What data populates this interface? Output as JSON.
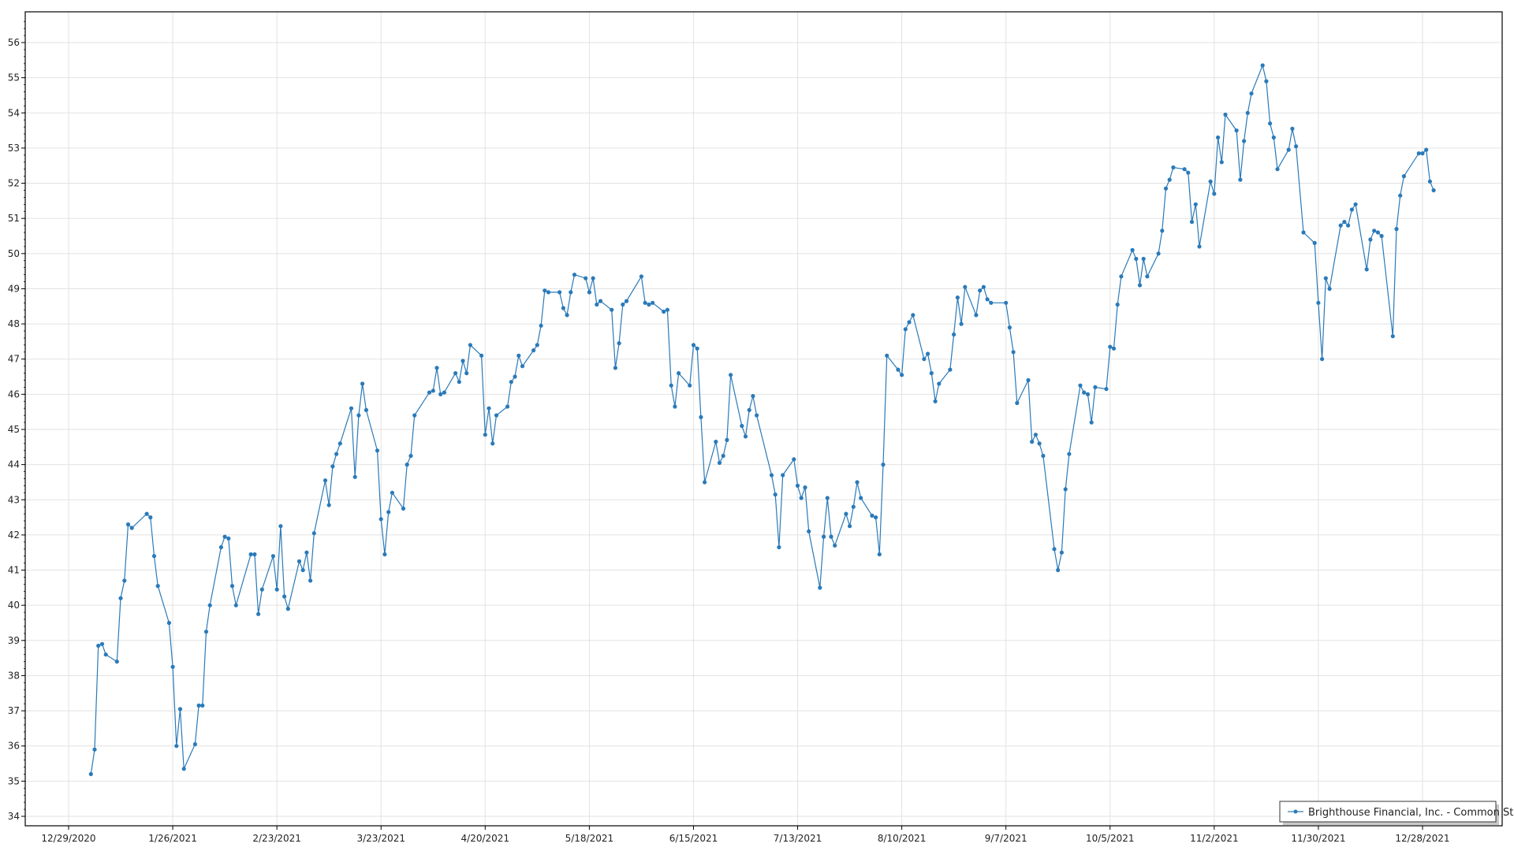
{
  "chart_data": {
    "type": "line",
    "title": "",
    "xlabel": "",
    "ylabel": "",
    "ylim": [
      34,
      56.8
    ],
    "xlim": [
      "2020-12-17",
      "2022-01-18"
    ],
    "grid": true,
    "legend_placement": "bottom-right",
    "y_ticks": [
      "34",
      "35",
      "36",
      "37",
      "38",
      "39",
      "40",
      "41",
      "42",
      "43",
      "44",
      "45",
      "46",
      "47",
      "48",
      "49",
      "50",
      "51",
      "52",
      "53",
      "54",
      "55",
      "56"
    ],
    "x_ticks": [
      {
        "date": "2020-12-29",
        "label": "12/29/2020"
      },
      {
        "date": "2021-01-26",
        "label": "1/26/2021"
      },
      {
        "date": "2021-02-23",
        "label": "2/23/2021"
      },
      {
        "date": "2021-03-23",
        "label": "3/23/2021"
      },
      {
        "date": "2021-04-20",
        "label": "4/20/2021"
      },
      {
        "date": "2021-05-18",
        "label": "5/18/2021"
      },
      {
        "date": "2021-06-15",
        "label": "6/15/2021"
      },
      {
        "date": "2021-07-13",
        "label": "7/13/2021"
      },
      {
        "date": "2021-08-10",
        "label": "8/10/2021"
      },
      {
        "date": "2021-09-07",
        "label": "9/7/2021"
      },
      {
        "date": "2021-10-05",
        "label": "10/5/2021"
      },
      {
        "date": "2021-11-02",
        "label": "11/2/2021"
      },
      {
        "date": "2021-11-30",
        "label": "11/30/2021"
      },
      {
        "date": "2021-12-28",
        "label": "12/28/2021"
      }
    ],
    "series": [
      {
        "name": "Brighthouse Financial, Inc. - Common Stock",
        "color": "#2a7ab9",
        "points": [
          [
            "2021-01-04",
            35.2
          ],
          [
            "2021-01-05",
            35.9
          ],
          [
            "2021-01-06",
            38.85
          ],
          [
            "2021-01-07",
            38.9
          ],
          [
            "2021-01-08",
            38.6
          ],
          [
            "2021-01-11",
            38.4
          ],
          [
            "2021-01-12",
            40.2
          ],
          [
            "2021-01-13",
            40.7
          ],
          [
            "2021-01-14",
            42.3
          ],
          [
            "2021-01-15",
            42.2
          ],
          [
            "2021-01-19",
            42.6
          ],
          [
            "2021-01-20",
            42.5
          ],
          [
            "2021-01-21",
            41.4
          ],
          [
            "2021-01-22",
            40.55
          ],
          [
            "2021-01-25",
            39.5
          ],
          [
            "2021-01-26",
            38.25
          ],
          [
            "2021-01-27",
            36.0
          ],
          [
            "2021-01-28",
            37.05
          ],
          [
            "2021-01-29",
            35.35
          ],
          [
            "2021-02-01",
            36.05
          ],
          [
            "2021-02-02",
            37.15
          ],
          [
            "2021-02-03",
            37.15
          ],
          [
            "2021-02-04",
            39.25
          ],
          [
            "2021-02-05",
            40.0
          ],
          [
            "2021-02-08",
            41.65
          ],
          [
            "2021-02-09",
            41.95
          ],
          [
            "2021-02-10",
            41.9
          ],
          [
            "2021-02-11",
            40.55
          ],
          [
            "2021-02-12",
            40.0
          ],
          [
            "2021-02-16",
            41.45
          ],
          [
            "2021-02-17",
            41.45
          ],
          [
            "2021-02-18",
            39.75
          ],
          [
            "2021-02-19",
            40.45
          ],
          [
            "2021-02-22",
            41.4
          ],
          [
            "2021-02-23",
            40.45
          ],
          [
            "2021-02-24",
            42.25
          ],
          [
            "2021-02-25",
            40.25
          ],
          [
            "2021-02-26",
            39.9
          ],
          [
            "2021-03-01",
            41.25
          ],
          [
            "2021-03-02",
            41.0
          ],
          [
            "2021-03-03",
            41.5
          ],
          [
            "2021-03-04",
            40.7
          ],
          [
            "2021-03-05",
            42.05
          ],
          [
            "2021-03-08",
            43.55
          ],
          [
            "2021-03-09",
            42.85
          ],
          [
            "2021-03-10",
            43.95
          ],
          [
            "2021-03-11",
            44.3
          ],
          [
            "2021-03-12",
            44.6
          ],
          [
            "2021-03-15",
            45.6
          ],
          [
            "2021-03-16",
            43.65
          ],
          [
            "2021-03-17",
            45.4
          ],
          [
            "2021-03-18",
            46.3
          ],
          [
            "2021-03-19",
            45.55
          ],
          [
            "2021-03-22",
            44.4
          ],
          [
            "2021-03-23",
            42.45
          ],
          [
            "2021-03-24",
            41.45
          ],
          [
            "2021-03-25",
            42.65
          ],
          [
            "2021-03-26",
            43.2
          ],
          [
            "2021-03-29",
            42.75
          ],
          [
            "2021-03-30",
            44.0
          ],
          [
            "2021-03-31",
            44.25
          ],
          [
            "2021-04-01",
            45.4
          ],
          [
            "2021-04-05",
            46.05
          ],
          [
            "2021-04-06",
            46.1
          ],
          [
            "2021-04-07",
            46.75
          ],
          [
            "2021-04-08",
            46.0
          ],
          [
            "2021-04-09",
            46.05
          ],
          [
            "2021-04-12",
            46.6
          ],
          [
            "2021-04-13",
            46.35
          ],
          [
            "2021-04-14",
            46.95
          ],
          [
            "2021-04-15",
            46.6
          ],
          [
            "2021-04-16",
            47.4
          ],
          [
            "2021-04-19",
            47.1
          ],
          [
            "2021-04-20",
            44.85
          ],
          [
            "2021-04-21",
            45.6
          ],
          [
            "2021-04-22",
            44.6
          ],
          [
            "2021-04-23",
            45.4
          ],
          [
            "2021-04-26",
            45.65
          ],
          [
            "2021-04-27",
            46.35
          ],
          [
            "2021-04-28",
            46.5
          ],
          [
            "2021-04-29",
            47.1
          ],
          [
            "2021-04-30",
            46.8
          ],
          [
            "2021-05-03",
            47.25
          ],
          [
            "2021-05-04",
            47.4
          ],
          [
            "2021-05-05",
            47.95
          ],
          [
            "2021-05-06",
            48.95
          ],
          [
            "2021-05-07",
            48.9
          ],
          [
            "2021-05-10",
            48.9
          ],
          [
            "2021-05-11",
            48.45
          ],
          [
            "2021-05-12",
            48.25
          ],
          [
            "2021-05-13",
            48.9
          ],
          [
            "2021-05-14",
            49.4
          ],
          [
            "2021-05-17",
            49.3
          ],
          [
            "2021-05-18",
            48.9
          ],
          [
            "2021-05-19",
            49.3
          ],
          [
            "2021-05-20",
            48.55
          ],
          [
            "2021-05-21",
            48.65
          ],
          [
            "2021-05-24",
            48.4
          ],
          [
            "2021-05-25",
            46.75
          ],
          [
            "2021-05-26",
            47.45
          ],
          [
            "2021-05-27",
            48.55
          ],
          [
            "2021-05-28",
            48.65
          ],
          [
            "2021-06-01",
            49.35
          ],
          [
            "2021-06-02",
            48.6
          ],
          [
            "2021-06-03",
            48.55
          ],
          [
            "2021-06-04",
            48.6
          ],
          [
            "2021-06-07",
            48.35
          ],
          [
            "2021-06-08",
            48.4
          ],
          [
            "2021-06-09",
            46.25
          ],
          [
            "2021-06-10",
            45.65
          ],
          [
            "2021-06-11",
            46.6
          ],
          [
            "2021-06-14",
            46.25
          ],
          [
            "2021-06-15",
            47.4
          ],
          [
            "2021-06-16",
            47.3
          ],
          [
            "2021-06-17",
            45.35
          ],
          [
            "2021-06-18",
            43.5
          ],
          [
            "2021-06-21",
            44.65
          ],
          [
            "2021-06-22",
            44.05
          ],
          [
            "2021-06-23",
            44.25
          ],
          [
            "2021-06-24",
            44.7
          ],
          [
            "2021-06-25",
            46.55
          ],
          [
            "2021-06-28",
            45.1
          ],
          [
            "2021-06-29",
            44.8
          ],
          [
            "2021-06-30",
            45.55
          ],
          [
            "2021-07-01",
            45.95
          ],
          [
            "2021-07-02",
            45.4
          ],
          [
            "2021-07-06",
            43.7
          ],
          [
            "2021-07-07",
            43.15
          ],
          [
            "2021-07-08",
            41.65
          ],
          [
            "2021-07-09",
            43.7
          ],
          [
            "2021-07-12",
            44.15
          ],
          [
            "2021-07-13",
            43.4
          ],
          [
            "2021-07-14",
            43.05
          ],
          [
            "2021-07-15",
            43.35
          ],
          [
            "2021-07-16",
            42.1
          ],
          [
            "2021-07-19",
            40.5
          ],
          [
            "2021-07-20",
            41.95
          ],
          [
            "2021-07-21",
            43.05
          ],
          [
            "2021-07-22",
            41.95
          ],
          [
            "2021-07-23",
            41.7
          ],
          [
            "2021-07-26",
            42.6
          ],
          [
            "2021-07-27",
            42.25
          ],
          [
            "2021-07-28",
            42.8
          ],
          [
            "2021-07-29",
            43.5
          ],
          [
            "2021-07-30",
            43.05
          ],
          [
            "2021-08-02",
            42.55
          ],
          [
            "2021-08-03",
            42.5
          ],
          [
            "2021-08-04",
            41.45
          ],
          [
            "2021-08-05",
            44.0
          ],
          [
            "2021-08-06",
            47.1
          ],
          [
            "2021-08-09",
            46.7
          ],
          [
            "2021-08-10",
            46.55
          ],
          [
            "2021-08-11",
            47.85
          ],
          [
            "2021-08-12",
            48.05
          ],
          [
            "2021-08-13",
            48.25
          ],
          [
            "2021-08-16",
            47.0
          ],
          [
            "2021-08-17",
            47.15
          ],
          [
            "2021-08-18",
            46.6
          ],
          [
            "2021-08-19",
            45.8
          ],
          [
            "2021-08-20",
            46.3
          ],
          [
            "2021-08-23",
            46.7
          ],
          [
            "2021-08-24",
            47.7
          ],
          [
            "2021-08-25",
            48.75
          ],
          [
            "2021-08-26",
            48.0
          ],
          [
            "2021-08-27",
            49.05
          ],
          [
            "2021-08-30",
            48.25
          ],
          [
            "2021-08-31",
            48.95
          ],
          [
            "2021-09-01",
            49.05
          ],
          [
            "2021-09-02",
            48.7
          ],
          [
            "2021-09-03",
            48.6
          ],
          [
            "2021-09-07",
            48.6
          ],
          [
            "2021-09-08",
            47.9
          ],
          [
            "2021-09-09",
            47.2
          ],
          [
            "2021-09-10",
            45.75
          ],
          [
            "2021-09-13",
            46.4
          ],
          [
            "2021-09-14",
            44.65
          ],
          [
            "2021-09-15",
            44.85
          ],
          [
            "2021-09-16",
            44.6
          ],
          [
            "2021-09-17",
            44.25
          ],
          [
            "2021-09-20",
            41.6
          ],
          [
            "2021-09-21",
            41.0
          ],
          [
            "2021-09-22",
            41.5
          ],
          [
            "2021-09-23",
            43.3
          ],
          [
            "2021-09-24",
            44.3
          ],
          [
            "2021-09-27",
            46.25
          ],
          [
            "2021-09-28",
            46.05
          ],
          [
            "2021-09-29",
            46.0
          ],
          [
            "2021-09-30",
            45.2
          ],
          [
            "2021-10-01",
            46.2
          ],
          [
            "2021-10-04",
            46.15
          ],
          [
            "2021-10-05",
            47.35
          ],
          [
            "2021-10-06",
            47.3
          ],
          [
            "2021-10-07",
            48.55
          ],
          [
            "2021-10-08",
            49.35
          ],
          [
            "2021-10-11",
            50.1
          ],
          [
            "2021-10-12",
            49.85
          ],
          [
            "2021-10-13",
            49.1
          ],
          [
            "2021-10-14",
            49.85
          ],
          [
            "2021-10-15",
            49.35
          ],
          [
            "2021-10-18",
            50.0
          ],
          [
            "2021-10-19",
            50.65
          ],
          [
            "2021-10-20",
            51.85
          ],
          [
            "2021-10-21",
            52.1
          ],
          [
            "2021-10-22",
            52.45
          ],
          [
            "2021-10-25",
            52.4
          ],
          [
            "2021-10-26",
            52.3
          ],
          [
            "2021-10-27",
            50.9
          ],
          [
            "2021-10-28",
            51.4
          ],
          [
            "2021-10-29",
            50.2
          ],
          [
            "2021-11-01",
            52.05
          ],
          [
            "2021-11-02",
            51.7
          ],
          [
            "2021-11-03",
            53.3
          ],
          [
            "2021-11-04",
            52.6
          ],
          [
            "2021-11-05",
            53.95
          ],
          [
            "2021-11-08",
            53.5
          ],
          [
            "2021-11-09",
            52.1
          ],
          [
            "2021-11-10",
            53.2
          ],
          [
            "2021-11-11",
            54.0
          ],
          [
            "2021-11-12",
            54.55
          ],
          [
            "2021-11-15",
            55.35
          ],
          [
            "2021-11-16",
            54.9
          ],
          [
            "2021-11-17",
            53.7
          ],
          [
            "2021-11-18",
            53.3
          ],
          [
            "2021-11-19",
            52.4
          ],
          [
            "2021-11-22",
            52.95
          ],
          [
            "2021-11-23",
            53.55
          ],
          [
            "2021-11-24",
            53.05
          ],
          [
            "2021-11-26",
            50.6
          ],
          [
            "2021-11-29",
            50.3
          ],
          [
            "2021-11-30",
            48.6
          ],
          [
            "2021-12-01",
            47.0
          ],
          [
            "2021-12-02",
            49.3
          ],
          [
            "2021-12-03",
            49.0
          ],
          [
            "2021-12-06",
            50.8
          ],
          [
            "2021-12-07",
            50.9
          ],
          [
            "2021-12-08",
            50.8
          ],
          [
            "2021-12-09",
            51.25
          ],
          [
            "2021-12-10",
            51.4
          ],
          [
            "2021-12-13",
            49.55
          ],
          [
            "2021-12-14",
            50.4
          ],
          [
            "2021-12-15",
            50.65
          ],
          [
            "2021-12-16",
            50.6
          ],
          [
            "2021-12-17",
            50.5
          ],
          [
            "2021-12-20",
            47.65
          ],
          [
            "2021-12-21",
            50.7
          ],
          [
            "2021-12-22",
            51.65
          ],
          [
            "2021-12-23",
            52.2
          ],
          [
            "2021-12-27",
            52.85
          ],
          [
            "2021-12-28",
            52.85
          ],
          [
            "2021-12-29",
            52.95
          ],
          [
            "2021-12-30",
            52.05
          ],
          [
            "2021-12-31",
            51.8
          ]
        ]
      }
    ]
  }
}
